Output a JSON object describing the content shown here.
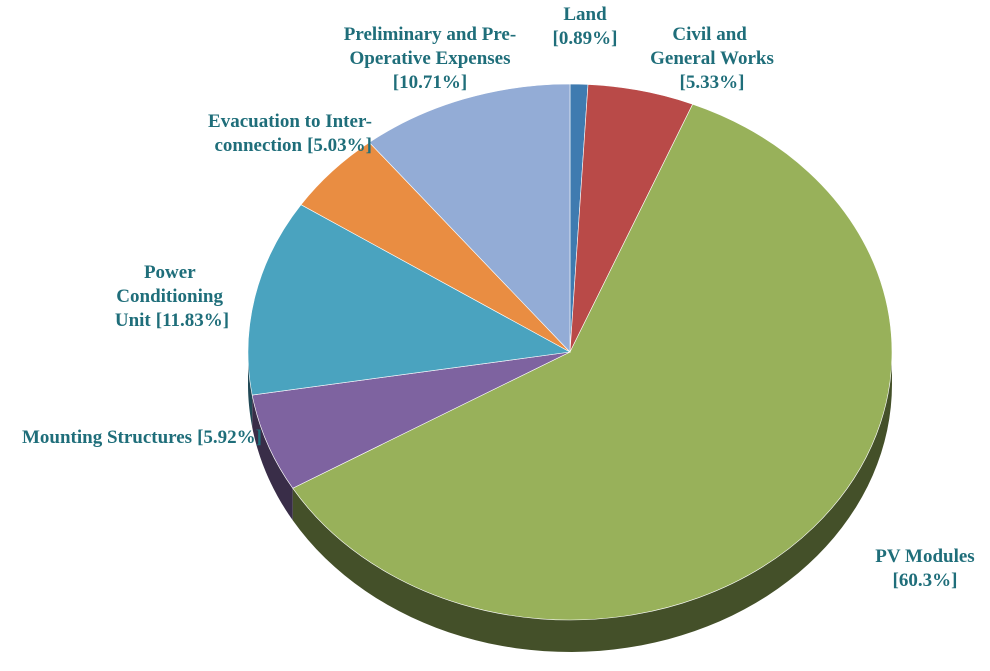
{
  "chart_data": {
    "type": "pie",
    "categories": [
      "Land",
      "Civil and General Works",
      "PV Modules",
      "Mounting Structures",
      "Power Conditioning Unit",
      "Evacuation to Inter-connection",
      "Preliminary and Pre-Operative Expenses"
    ],
    "values": [
      0.89,
      5.33,
      60.3,
      5.92,
      11.83,
      5.03,
      10.71
    ],
    "value_labels": [
      "[0.89%]",
      "[5.33%]",
      "[60.3%]",
      "[5.92%]",
      "[11.83%]",
      "[5.03%]",
      "[10.71%]"
    ],
    "colors": [
      "#3f7bb0",
      "#b94a48",
      "#98b15a",
      "#7e63a0",
      "#4aa3bf",
      "#e98d42",
      "#93acd6"
    ]
  }
}
